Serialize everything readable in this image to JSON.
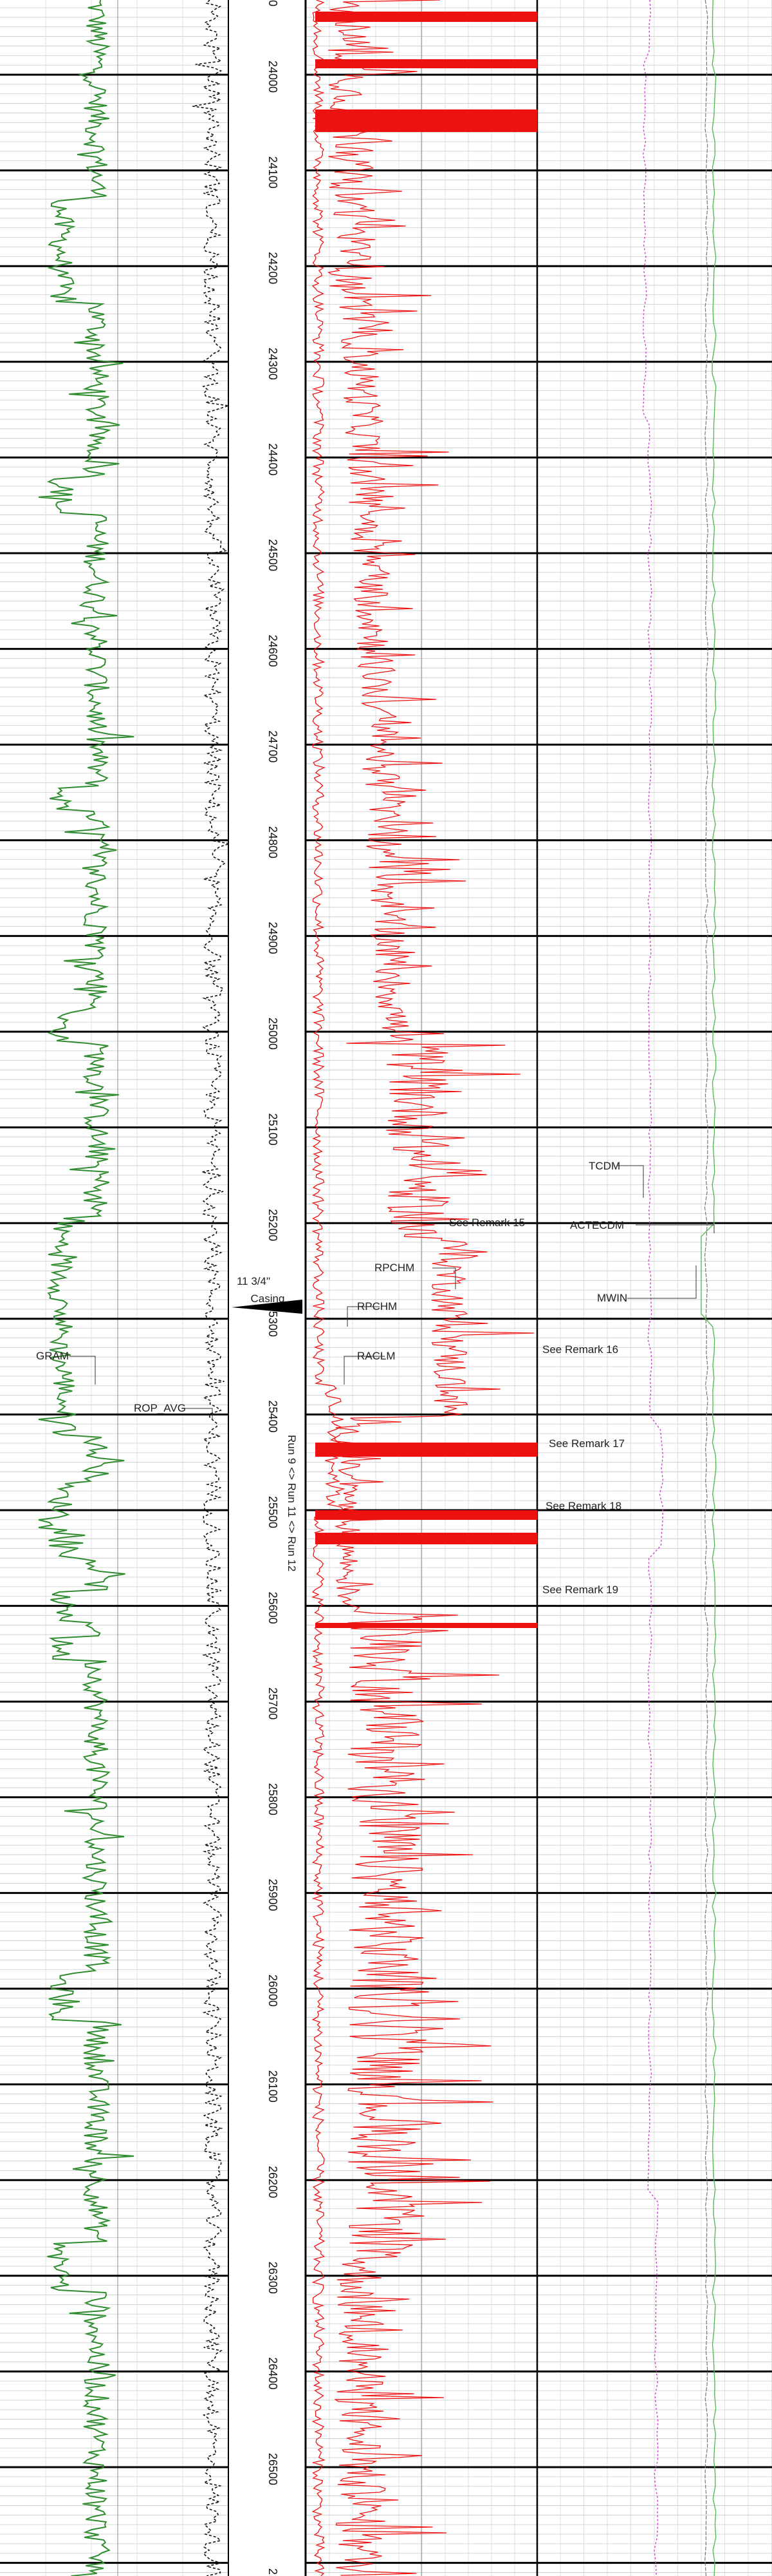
{
  "chart_data": {
    "type": "line",
    "title": "",
    "depth_range": [
      23900,
      26600
    ],
    "depth_ticks": [
      24000,
      24100,
      24200,
      24300,
      24400,
      24500,
      24600,
      24700,
      24800,
      24900,
      25000,
      25100,
      25200,
      25300,
      25400,
      25500,
      25600,
      25700,
      25800,
      25900,
      26000,
      26100,
      26200,
      26300,
      26400,
      26500
    ],
    "top_partial_label": "0",
    "bottom_partial_label": "2",
    "curve_labels": {
      "gram": "GRAM",
      "rop_avg": "ROP_AVG",
      "rpchm_1": "RPCHM",
      "rpchm_2": "RPCHM",
      "raclm": "RACLM",
      "tcdm": "TCDM",
      "actecdm": "ACTECDM",
      "mwin": "MWIN"
    },
    "remarks": [
      {
        "text": "See Remark 15",
        "depth": 25185
      },
      {
        "text": "See Remark 16",
        "depth": 25320
      },
      {
        "text": "See Remark 17",
        "depth": 25415
      },
      {
        "text": "See Remark 18",
        "depth": 25480
      },
      {
        "text": "See Remark 19",
        "depth": 25560
      }
    ],
    "casing": {
      "line1": "11 3/4\"",
      "line2": "Casing",
      "depth": 25265
    },
    "run_label": "Run 9 <> Run 11 <> Run 12",
    "colors": {
      "gram": "#2e8b2e",
      "resistivity": "#ee1111",
      "rop": "#111111",
      "tcdm": "#cc44cc",
      "actecdm": "#55bb55",
      "mwin": "#777777"
    }
  }
}
